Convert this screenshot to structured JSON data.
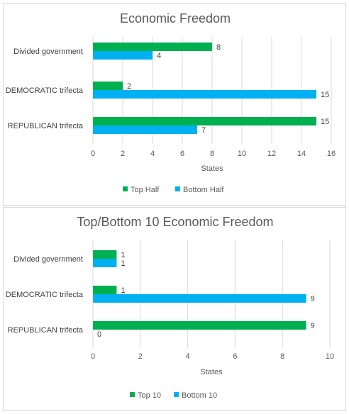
{
  "chart_data": [
    {
      "type": "bar",
      "orientation": "horizontal",
      "title": "Economic Freedom",
      "categories": [
        "Divided government",
        "DEMOCRATIC trifecta",
        "REPUBLICAN trifecta"
      ],
      "series": [
        {
          "name": "Top Half",
          "values": [
            8,
            2,
            15
          ],
          "color": "#00b050"
        },
        {
          "name": "Bottom Half",
          "values": [
            4,
            15,
            7
          ],
          "color": "#00b0f0"
        }
      ],
      "xlabel": "States",
      "xlim": [
        0,
        16
      ],
      "ticks": [
        "0",
        "2",
        "4",
        "6",
        "8",
        "10",
        "12",
        "14",
        "16"
      ],
      "grid": true,
      "legend": "bottom"
    },
    {
      "type": "bar",
      "orientation": "horizontal",
      "title": "Top/Bottom 10 Economic Freedom",
      "categories": [
        "Divided government",
        "DEMOCRATIC trifecta",
        "REPUBLICAN trifecta"
      ],
      "series": [
        {
          "name": "Top 10",
          "values": [
            1,
            1,
            9
          ],
          "color": "#00b050"
        },
        {
          "name": "Bottom 10",
          "values": [
            1,
            9,
            0
          ],
          "color": "#00b0f0"
        }
      ],
      "xlabel": "States",
      "xlim": [
        0,
        10
      ],
      "ticks": [
        "0",
        "2",
        "4",
        "6",
        "8",
        "10"
      ],
      "grid": true,
      "legend": "bottom"
    }
  ]
}
